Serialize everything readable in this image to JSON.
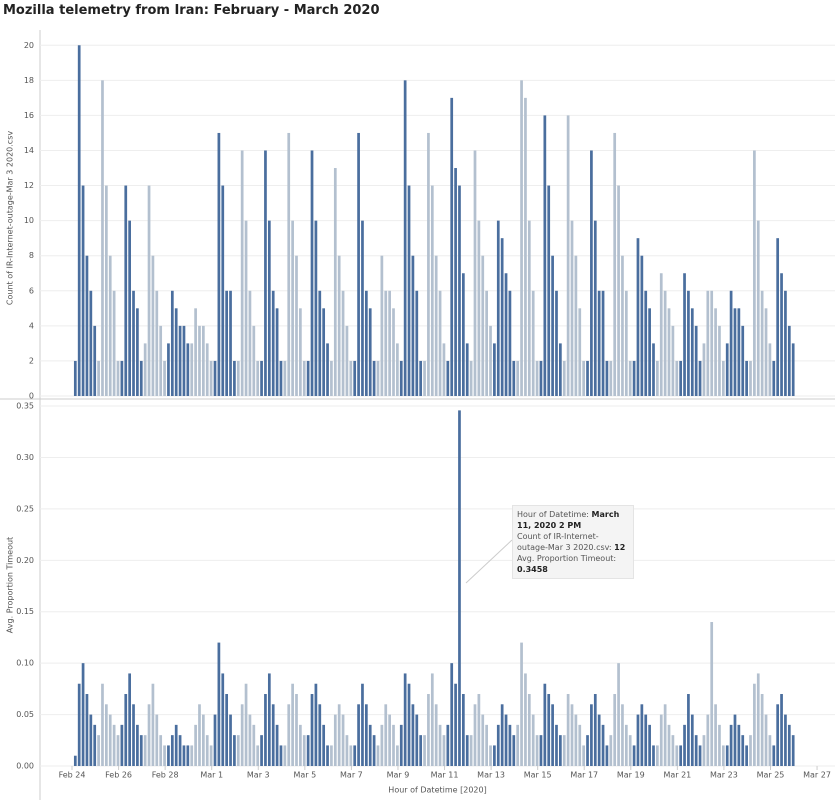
{
  "chart_data": {
    "type": "bar",
    "title": "Mozilla telemetry from Iran: February - March 2020",
    "x_label": "Hour of Datetime [2020]",
    "xlim": [
      "2020-02-22T15:00",
      "2020-03-27T18:30"
    ],
    "xticks": [
      {
        "value": "2020-02-24T00:00",
        "label": "Feb 24"
      },
      {
        "value": "2020-02-26T00:00",
        "label": "Feb 26"
      },
      {
        "value": "2020-02-28T00:00",
        "label": "Feb 28"
      },
      {
        "value": "2020-03-01T00:00",
        "label": "Mar 1"
      },
      {
        "value": "2020-03-03T00:00",
        "label": "Mar 3"
      },
      {
        "value": "2020-03-05T00:00",
        "label": "Mar 5"
      },
      {
        "value": "2020-03-07T00:00",
        "label": "Mar 7"
      },
      {
        "value": "2020-03-09T00:00",
        "label": "Mar 9"
      },
      {
        "value": "2020-03-11T00:00",
        "label": "Mar 11"
      },
      {
        "value": "2020-03-13T00:00",
        "label": "Mar 13"
      },
      {
        "value": "2020-03-15T00:00",
        "label": "Mar 15"
      },
      {
        "value": "2020-03-17T00:00",
        "label": "Mar 17"
      },
      {
        "value": "2020-03-19T00:00",
        "label": "Mar 19"
      },
      {
        "value": "2020-03-21T00:00",
        "label": "Mar 21"
      },
      {
        "value": "2020-03-23T00:00",
        "label": "Mar 23"
      },
      {
        "value": "2020-03-25T00:00",
        "label": "Mar 25"
      },
      {
        "value": "2020-03-27T00:00",
        "label": "Mar 27"
      }
    ],
    "colors": [
      "#4a6e9e",
      "#b3c0cf"
    ],
    "x": [
      "2020-02-24T02:00",
      "2020-02-24T06:00",
      "2020-02-24T10:00",
      "2020-02-24T14:00",
      "2020-02-24T18:00",
      "2020-02-24T22:00",
      "2020-02-25T02:00",
      "2020-02-25T06:00",
      "2020-02-25T10:00",
      "2020-02-25T14:00",
      "2020-02-25T18:00",
      "2020-02-25T22:00",
      "2020-02-26T02:00",
      "2020-02-26T06:00",
      "2020-02-26T10:00",
      "2020-02-26T14:00",
      "2020-02-26T18:00",
      "2020-02-26T22:00",
      "2020-02-27T02:00",
      "2020-02-27T06:00",
      "2020-02-27T10:00",
      "2020-02-27T14:00",
      "2020-02-27T18:00",
      "2020-02-27T22:00",
      "2020-02-28T02:00",
      "2020-02-28T06:00",
      "2020-02-28T10:00",
      "2020-02-28T14:00",
      "2020-02-28T18:00",
      "2020-02-28T22:00",
      "2020-02-29T02:00",
      "2020-02-29T06:00",
      "2020-02-29T10:00",
      "2020-02-29T14:00",
      "2020-02-29T18:00",
      "2020-02-29T22:00",
      "2020-03-01T02:00",
      "2020-03-01T06:00",
      "2020-03-01T10:00",
      "2020-03-01T14:00",
      "2020-03-01T18:00",
      "2020-03-01T22:00",
      "2020-03-02T02:00",
      "2020-03-02T06:00",
      "2020-03-02T10:00",
      "2020-03-02T14:00",
      "2020-03-02T18:00",
      "2020-03-02T22:00",
      "2020-03-03T02:00",
      "2020-03-03T06:00",
      "2020-03-03T10:00",
      "2020-03-03T14:00",
      "2020-03-03T18:00",
      "2020-03-03T22:00",
      "2020-03-04T02:00",
      "2020-03-04T06:00",
      "2020-03-04T10:00",
      "2020-03-04T14:00",
      "2020-03-04T18:00",
      "2020-03-04T22:00",
      "2020-03-05T02:00",
      "2020-03-05T06:00",
      "2020-03-05T10:00",
      "2020-03-05T14:00",
      "2020-03-05T18:00",
      "2020-03-05T22:00",
      "2020-03-06T02:00",
      "2020-03-06T06:00",
      "2020-03-06T10:00",
      "2020-03-06T14:00",
      "2020-03-06T18:00",
      "2020-03-06T22:00",
      "2020-03-07T02:00",
      "2020-03-07T06:00",
      "2020-03-07T10:00",
      "2020-03-07T14:00",
      "2020-03-07T18:00",
      "2020-03-07T22:00",
      "2020-03-08T02:00",
      "2020-03-08T06:00",
      "2020-03-08T10:00",
      "2020-03-08T14:00",
      "2020-03-08T18:00",
      "2020-03-08T22:00",
      "2020-03-09T02:00",
      "2020-03-09T06:00",
      "2020-03-09T10:00",
      "2020-03-09T14:00",
      "2020-03-09T18:00",
      "2020-03-09T22:00",
      "2020-03-10T02:00",
      "2020-03-10T06:00",
      "2020-03-10T10:00",
      "2020-03-10T14:00",
      "2020-03-10T18:00",
      "2020-03-10T22:00",
      "2020-03-11T02:00",
      "2020-03-11T06:00",
      "2020-03-11T10:00",
      "2020-03-11T14:00",
      "2020-03-11T18:00",
      "2020-03-11T22:00",
      "2020-03-12T02:00",
      "2020-03-12T06:00",
      "2020-03-12T10:00",
      "2020-03-12T14:00",
      "2020-03-12T18:00",
      "2020-03-12T22:00",
      "2020-03-13T02:00",
      "2020-03-13T06:00",
      "2020-03-13T10:00",
      "2020-03-13T14:00",
      "2020-03-13T18:00",
      "2020-03-13T22:00",
      "2020-03-14T02:00",
      "2020-03-14T06:00",
      "2020-03-14T10:00",
      "2020-03-14T14:00",
      "2020-03-14T18:00",
      "2020-03-14T22:00",
      "2020-03-15T02:00",
      "2020-03-15T06:00",
      "2020-03-15T10:00",
      "2020-03-15T14:00",
      "2020-03-15T18:00",
      "2020-03-15T22:00",
      "2020-03-16T02:00",
      "2020-03-16T06:00",
      "2020-03-16T10:00",
      "2020-03-16T14:00",
      "2020-03-16T18:00",
      "2020-03-16T22:00",
      "2020-03-17T02:00",
      "2020-03-17T06:00",
      "2020-03-17T10:00",
      "2020-03-17T14:00",
      "2020-03-17T18:00",
      "2020-03-17T22:00",
      "2020-03-18T02:00",
      "2020-03-18T06:00",
      "2020-03-18T10:00",
      "2020-03-18T14:00",
      "2020-03-18T18:00",
      "2020-03-18T22:00",
      "2020-03-19T02:00",
      "2020-03-19T06:00",
      "2020-03-19T10:00",
      "2020-03-19T14:00",
      "2020-03-19T18:00",
      "2020-03-19T22:00",
      "2020-03-20T02:00",
      "2020-03-20T06:00",
      "2020-03-20T10:00",
      "2020-03-20T14:00",
      "2020-03-20T18:00",
      "2020-03-20T22:00",
      "2020-03-21T02:00",
      "2020-03-21T06:00",
      "2020-03-21T10:00",
      "2020-03-21T14:00",
      "2020-03-21T18:00",
      "2020-03-21T22:00",
      "2020-03-22T02:00",
      "2020-03-22T06:00",
      "2020-03-22T10:00",
      "2020-03-22T14:00",
      "2020-03-22T18:00",
      "2020-03-22T22:00",
      "2020-03-23T02:00",
      "2020-03-23T06:00",
      "2020-03-23T10:00",
      "2020-03-23T14:00",
      "2020-03-23T18:00",
      "2020-03-23T22:00",
      "2020-03-24T02:00",
      "2020-03-24T06:00",
      "2020-03-24T10:00",
      "2020-03-24T14:00",
      "2020-03-24T18:00",
      "2020-03-24T22:00",
      "2020-03-25T02:00",
      "2020-03-25T06:00",
      "2020-03-25T10:00",
      "2020-03-25T14:00",
      "2020-03-25T18:00",
      "2020-03-25T22:00"
    ],
    "panels": [
      {
        "y_label": "Count of IR-Internet-outage-Mar 3 2020.csv",
        "ylim": [
          0,
          20.3
        ],
        "yticks": [
          0,
          2,
          4,
          6,
          8,
          10,
          12,
          14,
          16,
          18,
          20
        ],
        "values": [
          2,
          20,
          12,
          8,
          6,
          4,
          2,
          18,
          12,
          8,
          6,
          2,
          2,
          12,
          10,
          6,
          5,
          2,
          3,
          12,
          8,
          6,
          4,
          2,
          3,
          6,
          5,
          4,
          4,
          3,
          3,
          5,
          4,
          4,
          3,
          2,
          2,
          15,
          12,
          6,
          6,
          2,
          2,
          14,
          10,
          6,
          4,
          2,
          2,
          14,
          10,
          6,
          5,
          2,
          2,
          15,
          10,
          8,
          5,
          2,
          2,
          14,
          10,
          6,
          5,
          3,
          2,
          13,
          8,
          6,
          4,
          2,
          2,
          15,
          10,
          6,
          5,
          2,
          2,
          8,
          6,
          6,
          5,
          3,
          2,
          18,
          12,
          8,
          6,
          2,
          2,
          15,
          12,
          8,
          6,
          3,
          2,
          17,
          13,
          12,
          7,
          3,
          2,
          14,
          10,
          8,
          6,
          4,
          3,
          10,
          9,
          7,
          6,
          2,
          2,
          18,
          17,
          10,
          6,
          2,
          2,
          16,
          12,
          8,
          6,
          3,
          2,
          16,
          10,
          8,
          5,
          2,
          2,
          14,
          10,
          6,
          6,
          2,
          2,
          15,
          12,
          8,
          6,
          2,
          2,
          9,
          8,
          6,
          5,
          3,
          2,
          7,
          6,
          5,
          4,
          2,
          2,
          7,
          6,
          5,
          4,
          2,
          3,
          6,
          6,
          5,
          4,
          2,
          3,
          6,
          5,
          5,
          4,
          2,
          2,
          14,
          10,
          6,
          5,
          3,
          2,
          9,
          7,
          6,
          4,
          3
        ]
      },
      {
        "y_label": "Avg. Proportion Timeout",
        "ylim": [
          0,
          0.352
        ],
        "yticks": [
          {
            "value": 0,
            "label": "0.00"
          },
          {
            "value": 0.05,
            "label": "0.05"
          },
          {
            "value": 0.1,
            "label": "0.10"
          },
          {
            "value": 0.15,
            "label": "0.15"
          },
          {
            "value": 0.2,
            "label": "0.20"
          },
          {
            "value": 0.25,
            "label": "0.25"
          },
          {
            "value": 0.3,
            "label": "0.30"
          },
          {
            "value": 0.35,
            "label": "0.35"
          }
        ],
        "values": [
          0.01,
          0.08,
          0.1,
          0.07,
          0.05,
          0.04,
          0.03,
          0.08,
          0.06,
          0.05,
          0.04,
          0.03,
          0.04,
          0.07,
          0.09,
          0.06,
          0.04,
          0.03,
          0.03,
          0.06,
          0.08,
          0.05,
          0.03,
          0.02,
          0.02,
          0.03,
          0.04,
          0.03,
          0.02,
          0.02,
          0.02,
          0.04,
          0.06,
          0.05,
          0.03,
          0.02,
          0.05,
          0.12,
          0.09,
          0.07,
          0.05,
          0.03,
          0.03,
          0.06,
          0.08,
          0.05,
          0.04,
          0.02,
          0.03,
          0.07,
          0.09,
          0.06,
          0.04,
          0.02,
          0.02,
          0.06,
          0.08,
          0.07,
          0.04,
          0.03,
          0.03,
          0.07,
          0.08,
          0.06,
          0.04,
          0.02,
          0.02,
          0.05,
          0.06,
          0.05,
          0.03,
          0.02,
          0.02,
          0.06,
          0.08,
          0.06,
          0.04,
          0.03,
          0.02,
          0.04,
          0.06,
          0.05,
          0.04,
          0.02,
          0.04,
          0.09,
          0.08,
          0.06,
          0.05,
          0.03,
          0.03,
          0.07,
          0.09,
          0.06,
          0.04,
          0.03,
          0.04,
          0.1,
          0.08,
          0.3458,
          0.07,
          0.03,
          0.03,
          0.06,
          0.07,
          0.05,
          0.04,
          0.02,
          0.02,
          0.04,
          0.06,
          0.05,
          0.04,
          0.03,
          0.04,
          0.12,
          0.09,
          0.07,
          0.05,
          0.03,
          0.03,
          0.08,
          0.07,
          0.06,
          0.04,
          0.03,
          0.03,
          0.07,
          0.06,
          0.05,
          0.04,
          0.02,
          0.03,
          0.06,
          0.07,
          0.05,
          0.04,
          0.02,
          0.03,
          0.07,
          0.1,
          0.06,
          0.04,
          0.03,
          0.02,
          0.05,
          0.06,
          0.05,
          0.04,
          0.02,
          0.02,
          0.05,
          0.06,
          0.04,
          0.03,
          0.02,
          0.02,
          0.04,
          0.07,
          0.05,
          0.03,
          0.02,
          0.03,
          0.05,
          0.14,
          0.06,
          0.04,
          0.02,
          0.02,
          0.04,
          0.05,
          0.04,
          0.03,
          0.02,
          0.03,
          0.08,
          0.09,
          0.07,
          0.05,
          0.03,
          0.02,
          0.06,
          0.07,
          0.05,
          0.04,
          0.03
        ]
      }
    ],
    "tooltip": {
      "date_label": "Hour of Datetime:",
      "date": "March 11, 2020 2 PM",
      "count_label": "Count of IR-Internet-outage-Mar 3 2020.csv:",
      "count": "12",
      "avg_label": "Avg. Proportion Timeout:",
      "avg": "0.3458"
    }
  }
}
